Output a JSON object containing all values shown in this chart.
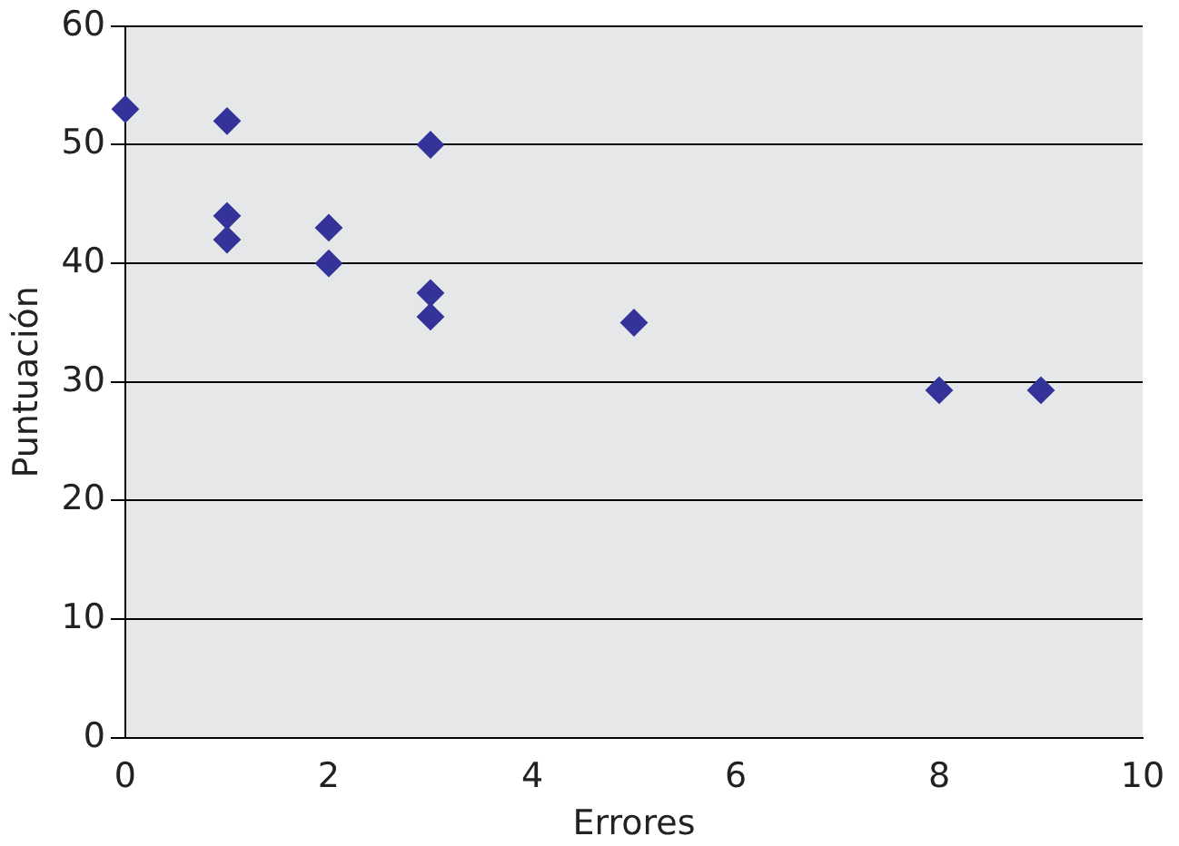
{
  "chart_data": {
    "type": "scatter",
    "xlabel": "Errores",
    "ylabel": "Puntuación",
    "x": [
      0,
      1,
      1,
      1,
      2,
      2,
      3,
      3,
      3,
      5,
      8,
      9
    ],
    "series": [
      {
        "color": "#333399",
        "values": [
          53,
          52,
          44,
          42,
          43,
          40,
          50,
          37.5,
          35.5,
          35,
          29.3,
          29.3
        ]
      }
    ],
    "xlim": [
      0,
      10
    ],
    "xticks": [
      0,
      2,
      4,
      6,
      8,
      10
    ],
    "ylim": [
      0,
      60
    ],
    "yticks": [
      0,
      10,
      20,
      30,
      40,
      50,
      60
    ],
    "grid": "y",
    "marker": "diamond",
    "legend": false
  }
}
